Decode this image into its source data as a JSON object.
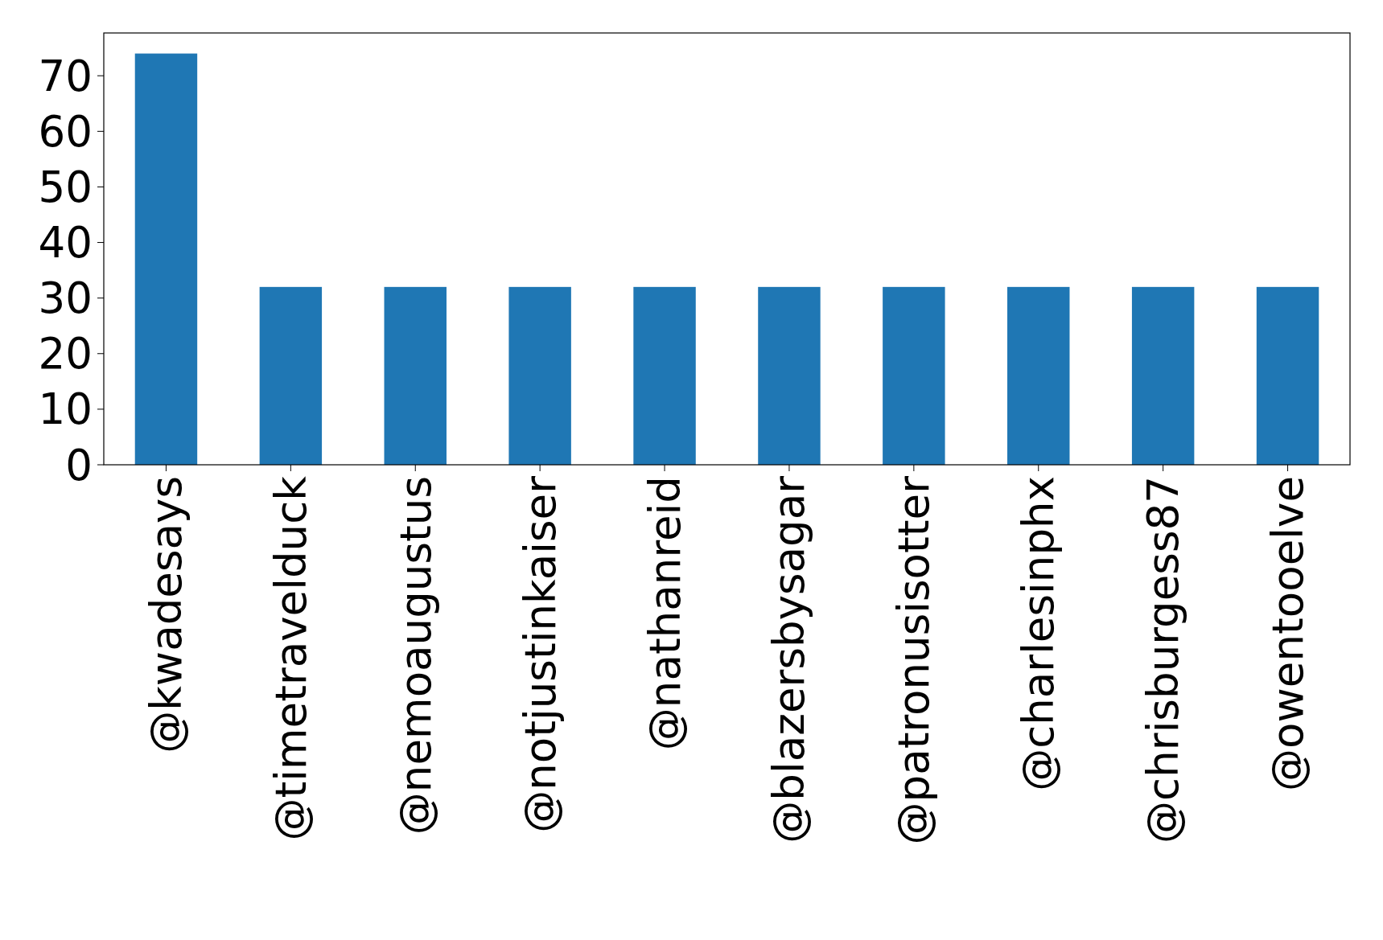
{
  "chart_data": {
    "type": "bar",
    "categories": [
      "@kwadesays",
      "@timetravelduck",
      "@nemoaugustus",
      "@notjustinkaiser",
      "@nathanreid",
      "@blazersbysagar",
      "@patronusisotter",
      "@charlesinphx",
      "@chrisburgess87",
      "@owentooelve"
    ],
    "values": [
      74,
      32,
      32,
      32,
      32,
      32,
      32,
      32,
      32,
      32
    ],
    "color": "#1f77b4",
    "ylim": [
      0,
      77.7
    ],
    "yticks": [
      0,
      10,
      20,
      30,
      40,
      50,
      60,
      70
    ],
    "grid": false
  }
}
